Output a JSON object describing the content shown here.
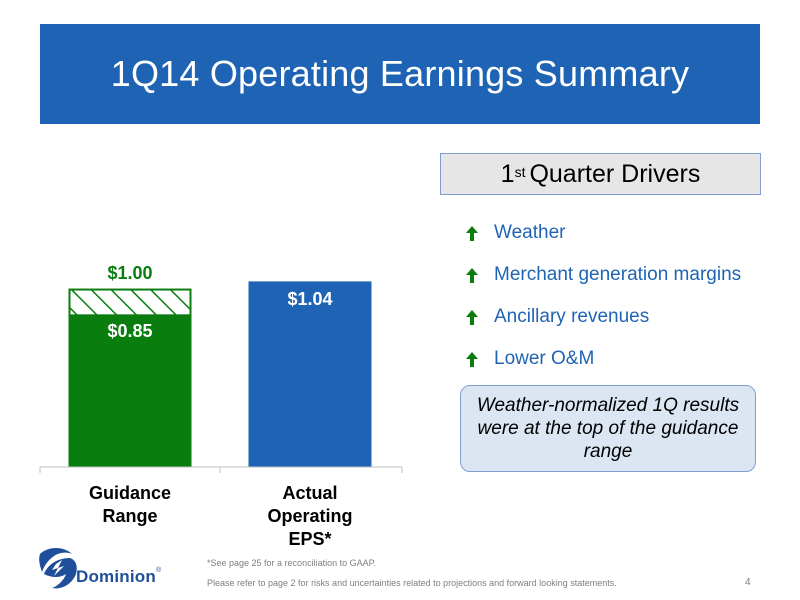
{
  "title": "1Q14 Operating Earnings Summary",
  "chart_data": {
    "type": "bar",
    "categories": [
      "Guidance Range",
      "Actual Operating EPS*"
    ],
    "ylim": [
      0,
      1.16
    ],
    "grid": false,
    "series": [
      {
        "values": [
          0.85,
          1.04
        ]
      },
      {
        "values": [
          0.15,
          0
        ]
      }
    ],
    "bar_labels": {
      "guidance_top": "$1.00",
      "guidance_low": "$0.85",
      "actual": "$1.04"
    },
    "category_labels": {
      "guidance_line1": "Guidance",
      "guidance_line2": "Range",
      "actual_line1": "Actual",
      "actual_line2": "Operating EPS*"
    },
    "colors": {
      "guidance": "#0a7d0f",
      "actual": "#1f64b4"
    }
  },
  "drivers": {
    "header_sup": "st",
    "header_prefix": "1",
    "header_text": "Quarter Drivers",
    "items": [
      {
        "label": "Weather",
        "icon": "up-arrow-icon"
      },
      {
        "label": "Merchant generation margins",
        "icon": "up-arrow-icon"
      },
      {
        "label": "Ancillary revenues",
        "icon": "up-arrow-icon"
      },
      {
        "label": "Lower O&M",
        "icon": "up-arrow-icon"
      }
    ],
    "callout": "Weather-normalized 1Q results were at the top of the guidance range"
  },
  "footer": {
    "footnote": "*See page 25 for a reconciliation to GAAP.",
    "disclaimer": "Please refer to page 2 for risks and uncertainties related to projections and forward looking statements.",
    "page_number": "4",
    "logo_text": "Dominion",
    "logo_reg": "®"
  },
  "colors": {
    "title_bar": "#1f64b4",
    "arrow": "#0a7d0f",
    "driver_text": "#1f64b4"
  }
}
